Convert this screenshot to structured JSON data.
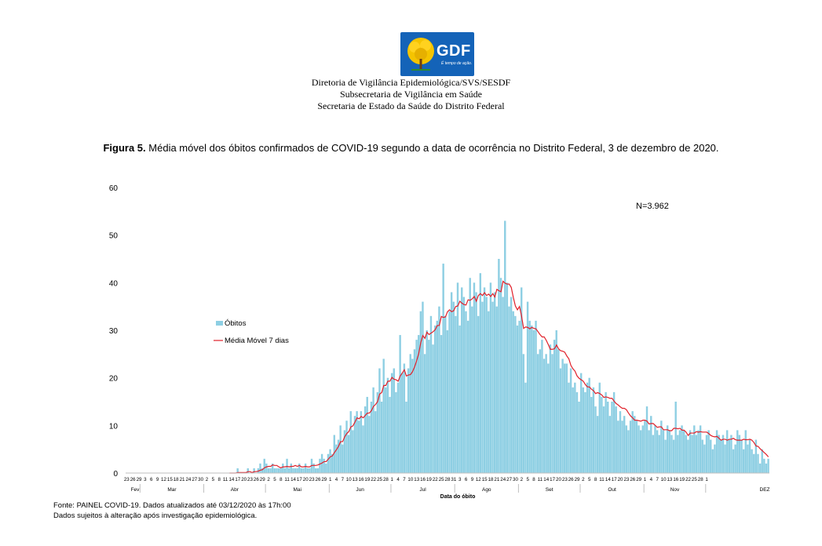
{
  "logo": {
    "text": "GDF",
    "tagline": "É tempo de ação.",
    "icon": "ipe-tree-icon"
  },
  "header": {
    "line1": "Diretoria de Vigilância Epidemiológica/SVS/SESDF",
    "line2": "Subsecretaria de Vigilância em Saúde",
    "line3": "Secretaria de Estado da Saúde do Distrito Federal"
  },
  "figure": {
    "label": "Figura 5.",
    "title": "Média móvel dos óbitos confirmados de COVID-19 segundo a data de ocorrência no Distrito Federal, 3 de dezembro de 2020."
  },
  "footer": {
    "source": "Fonte: PAINEL COVID-19. Dados atualizados até 03/12/2020 às 17h:00",
    "note": "Dados sujeitos à alteração após investigação epidemiológica."
  },
  "colors": {
    "bars": "#8ecfe3",
    "line": "#e0202a",
    "axis": "#bfbfbf"
  },
  "chart_data": {
    "type": "bar",
    "title": "",
    "xlabel": "Data do óbito",
    "ylabel": "",
    "ylim": [
      0,
      60
    ],
    "yticks": [
      0,
      10,
      20,
      30,
      40,
      50,
      60
    ],
    "grid": false,
    "legend_position": "left-middle",
    "annotation": "N=3.962",
    "x_start": "2020-02-23",
    "x_end": "2020-12-02",
    "tick_labels": [
      "23",
      "26",
      "29",
      "3",
      "6",
      "9",
      "12",
      "15",
      "18",
      "21",
      "24",
      "27",
      "30",
      "2",
      "5",
      "8",
      "11",
      "14",
      "17",
      "20",
      "23",
      "26",
      "29",
      "2",
      "5",
      "8",
      "11",
      "14",
      "17",
      "20",
      "23",
      "26",
      "29",
      "1",
      "4",
      "7",
      "10",
      "13",
      "16",
      "19",
      "22",
      "25",
      "28",
      "1",
      "4",
      "7",
      "10",
      "13",
      "16",
      "19",
      "22",
      "25",
      "28",
      "31",
      "3",
      "6",
      "9",
      "12",
      "15",
      "18",
      "21",
      "24",
      "27",
      "30",
      "2",
      "5",
      "8",
      "11",
      "14",
      "17",
      "20",
      "23",
      "26",
      "29",
      "2",
      "5",
      "8",
      "11",
      "14",
      "17",
      "20",
      "23",
      "26",
      "29",
      "1",
      "4",
      "7",
      "10",
      "13",
      "16",
      "19",
      "22",
      "25",
      "28",
      "1"
    ],
    "months": [
      "Fev",
      "Mar",
      "Abr",
      "Mai",
      "Jun",
      "Jul",
      "Ago",
      "Set",
      "Out",
      "Nov",
      "DEZ"
    ],
    "series": [
      {
        "name": "Óbitos",
        "type": "bar",
        "values": [
          0,
          0,
          0,
          0,
          0,
          0,
          0,
          0,
          0,
          0,
          0,
          0,
          0,
          0,
          0,
          0,
          0,
          0,
          0,
          0,
          0,
          0,
          0,
          0,
          0,
          0,
          0,
          0,
          0,
          0,
          0,
          0,
          0,
          0,
          0,
          0,
          0,
          0,
          0,
          0,
          0,
          0,
          0,
          0,
          0,
          0,
          0,
          0,
          0,
          0,
          0,
          0,
          0,
          0,
          1,
          0,
          0,
          0,
          0,
          1,
          0,
          0,
          1,
          0,
          1,
          2,
          1,
          3,
          2,
          1,
          1,
          2,
          1,
          1,
          1,
          1,
          2,
          1,
          3,
          1,
          2,
          1,
          1,
          1,
          2,
          1,
          1,
          2,
          1,
          1,
          3,
          2,
          1,
          1,
          3,
          4,
          3,
          2,
          4,
          5,
          4,
          8,
          6,
          7,
          10,
          6,
          9,
          11,
          8,
          13,
          9,
          12,
          13,
          11,
          13,
          10,
          14,
          16,
          12,
          15,
          18,
          13,
          17,
          22,
          15,
          24,
          18,
          20,
          16,
          21,
          22,
          17,
          19,
          29,
          21,
          23,
          15,
          22,
          25,
          24,
          26,
          28,
          29,
          34,
          36,
          25,
          30,
          28,
          33,
          27,
          31,
          32,
          35,
          29,
          44,
          33,
          30,
          34,
          38,
          36,
          33,
          40,
          31,
          39,
          37,
          34,
          32,
          41,
          35,
          40,
          38,
          33,
          42,
          36,
          39,
          37,
          34,
          40,
          36,
          38,
          35,
          45,
          41,
          37,
          53,
          40,
          35,
          37,
          34,
          33,
          31,
          32,
          39,
          25,
          19,
          36,
          32,
          31,
          30,
          32,
          25,
          26,
          28,
          24,
          25,
          23,
          27,
          25,
          28,
          30,
          26,
          22,
          24,
          23,
          23,
          19,
          22,
          18,
          19,
          17,
          15,
          21,
          18,
          17,
          19,
          20,
          16,
          18,
          14,
          12,
          19,
          16,
          14,
          17,
          15,
          12,
          15,
          17,
          14,
          11,
          13,
          11,
          12,
          10,
          9,
          11,
          13,
          12,
          11,
          10,
          9,
          10,
          11,
          14,
          9,
          12,
          8,
          10,
          9,
          8,
          11,
          9,
          7,
          10,
          9,
          8,
          7,
          15,
          8,
          9,
          10,
          9,
          8,
          7,
          9,
          8,
          10,
          8,
          9,
          10,
          7,
          6,
          8,
          9,
          7,
          5,
          6,
          9,
          8,
          7,
          8,
          6,
          9,
          7,
          8,
          5,
          6,
          9,
          8,
          7,
          5,
          9,
          6,
          7,
          5,
          4,
          7,
          4,
          2,
          5,
          3,
          2,
          3
        ]
      },
      {
        "name": "Média Móvel  7 dias",
        "type": "line",
        "values": [
          0,
          0,
          0,
          0,
          0,
          0,
          0,
          0,
          0,
          0,
          0,
          0,
          0,
          0,
          0,
          0,
          0,
          0,
          0,
          0,
          0,
          0,
          0,
          0,
          0,
          0,
          0,
          0,
          0,
          0,
          0,
          0,
          0,
          0,
          0,
          0,
          0,
          0,
          0,
          0,
          0,
          0,
          0,
          0,
          0,
          0,
          0,
          0,
          0,
          0,
          0,
          0,
          0,
          0,
          0.1,
          0.1,
          0.1,
          0.1,
          0.1,
          0.3,
          0.3,
          0.1,
          0.3,
          0.3,
          0.4,
          0.6,
          0.7,
          1.1,
          1.3,
          1.4,
          1.4,
          1.7,
          1.6,
          1.6,
          1.3,
          1.1,
          1.3,
          1.3,
          1.4,
          1.3,
          1.4,
          1.4,
          1.6,
          1.4,
          1.6,
          1.3,
          1.3,
          1.4,
          1.3,
          1.3,
          1.6,
          1.6,
          1.6,
          1.7,
          1.9,
          2.1,
          2.4,
          2.4,
          2.9,
          3.4,
          3.6,
          4.3,
          4.9,
          5.6,
          6.6,
          6.6,
          7.6,
          8.3,
          8.7,
          9.7,
          9.9,
          10.7,
          11.6,
          11.4,
          11.9,
          11.6,
          12.1,
          12.6,
          12.6,
          13.1,
          14.0,
          14.4,
          15.0,
          16.6,
          16.9,
          18.4,
          18.4,
          19.3,
          19.3,
          20.1,
          19.7,
          19.6,
          19.3,
          20.4,
          21.0,
          21.7,
          20.4,
          20.6,
          20.7,
          21.3,
          22.3,
          23.6,
          25.1,
          27.4,
          28.9,
          28.3,
          29.6,
          29.1,
          29.4,
          29.7,
          30.1,
          31.0,
          31.0,
          32.9,
          32.7,
          32.8,
          33.9,
          34.3,
          33.9,
          34.1,
          35.0,
          35.1,
          36.1,
          35.7,
          35.4,
          35.3,
          36.4,
          36.3,
          36.6,
          37.1,
          36.1,
          37.3,
          37.7,
          37.3,
          37.9,
          37.3,
          37.6,
          37.1,
          37.7,
          37.0,
          38.6,
          38.3,
          38.1,
          40.3,
          39.9,
          39.7,
          39.7,
          39.0,
          36.9,
          35.1,
          34.3,
          35.0,
          33.0,
          30.4,
          30.7,
          30.6,
          30.3,
          30.6,
          30.4,
          30.3,
          29.7,
          29.1,
          28.6,
          28.6,
          27.9,
          27.0,
          26.0,
          26.0,
          26.1,
          26.9,
          26.1,
          25.7,
          25.6,
          25.4,
          24.6,
          24.0,
          22.6,
          21.9,
          21.4,
          20.4,
          19.9,
          19.6,
          19.3,
          18.6,
          18.1,
          18.1,
          17.6,
          17.3,
          16.7,
          16.9,
          16.7,
          16.4,
          15.9,
          16.0,
          15.9,
          15.7,
          15.7,
          15.1,
          14.6,
          14.3,
          13.9,
          13.6,
          13.6,
          13.3,
          12.6,
          12.0,
          11.6,
          11.1,
          11.1,
          11.0,
          10.9,
          11.1,
          11.1,
          10.9,
          10.3,
          10.4,
          10.4,
          10.0,
          9.6,
          9.7,
          9.7,
          9.1,
          9.1,
          9.1,
          8.9,
          8.9,
          9.4,
          9.4,
          9.3,
          9.4,
          9.0,
          9.0,
          8.6,
          7.9,
          8.4,
          8.4,
          8.4,
          8.7,
          8.6,
          8.7,
          8.6,
          8.6,
          8.6,
          8.3,
          7.9,
          7.7,
          7.6,
          7.7,
          7.3,
          6.9,
          7.1,
          7.1,
          6.9,
          7.1,
          7.1,
          7.3,
          7.0,
          6.9,
          6.9,
          6.9,
          7.1,
          7.0,
          7.0,
          7.1,
          6.9,
          6.4,
          5.7,
          5.6,
          5.1,
          4.7,
          4.3,
          3.9,
          3.4
        ]
      }
    ]
  }
}
